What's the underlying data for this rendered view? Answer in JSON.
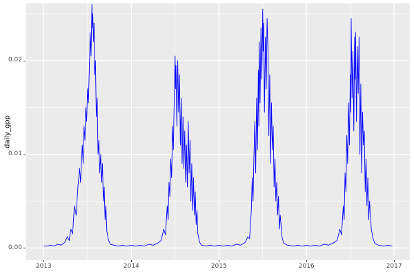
{
  "figure": {
    "bg": "#FFFFFF",
    "panel_bg": "#EBEBEB",
    "grid_major_color": "#FFFFFF",
    "grid_minor_color": "#FFFFFF",
    "tick_text_color": "#4D4D4D",
    "axis_title_color": "#000000"
  },
  "chart_data": {
    "type": "line",
    "title": "",
    "xlabel": "",
    "ylabel": "daily_gpp",
    "grid": true,
    "legend": false,
    "xlim": [
      2012.8,
      2017.18
    ],
    "ylim": [
      -0.0013,
      0.0261
    ],
    "x_major_ticks": [
      2013,
      2014,
      2015,
      2016,
      2017
    ],
    "x_tick_labels": [
      "2013",
      "2014",
      "2015",
      "2016",
      "2017"
    ],
    "x_minor_ticks": [
      2013.5,
      2014.5,
      2015.5,
      2016.5
    ],
    "y_major_ticks": [
      0.0,
      0.01,
      0.02
    ],
    "y_tick_labels": [
      "0.00",
      "0.01",
      "0.02"
    ],
    "y_minor_ticks": [
      0.005,
      0.015,
      0.025
    ],
    "series": [
      {
        "name": "daily_gpp",
        "color": "#0000FF",
        "points": [
          [
            2013.0,
            0.0002
          ],
          [
            2013.04,
            0.0002
          ],
          [
            2013.08,
            0.0003
          ],
          [
            2013.12,
            0.0002
          ],
          [
            2013.16,
            0.0004
          ],
          [
            2013.2,
            0.0003
          ],
          [
            2013.24,
            0.0006
          ],
          [
            2013.27,
            0.0012
          ],
          [
            2013.29,
            0.0008
          ],
          [
            2013.31,
            0.002
          ],
          [
            2013.33,
            0.0015
          ],
          [
            2013.35,
            0.0045
          ],
          [
            2013.37,
            0.0035
          ],
          [
            2013.39,
            0.0065
          ],
          [
            2013.41,
            0.0085
          ],
          [
            2013.42,
            0.007
          ],
          [
            2013.44,
            0.011
          ],
          [
            2013.45,
            0.009
          ],
          [
            2013.46,
            0.013
          ],
          [
            2013.47,
            0.0115
          ],
          [
            2013.48,
            0.015
          ],
          [
            2013.49,
            0.0135
          ],
          [
            2013.5,
            0.017
          ],
          [
            2013.51,
            0.0155
          ],
          [
            2013.52,
            0.019
          ],
          [
            2013.53,
            0.023
          ],
          [
            2013.54,
            0.0205
          ],
          [
            2013.55,
            0.026
          ],
          [
            2013.555,
            0.0235
          ],
          [
            2013.56,
            0.025
          ],
          [
            2013.57,
            0.022
          ],
          [
            2013.575,
            0.024
          ],
          [
            2013.58,
            0.0185
          ],
          [
            2013.59,
            0.02
          ],
          [
            2013.6,
            0.014
          ],
          [
            2013.61,
            0.016
          ],
          [
            2013.62,
            0.01
          ],
          [
            2013.63,
            0.0115
          ],
          [
            2013.64,
            0.008
          ],
          [
            2013.65,
            0.01
          ],
          [
            2013.66,
            0.007
          ],
          [
            2013.67,
            0.009
          ],
          [
            2013.68,
            0.005
          ],
          [
            2013.69,
            0.0065
          ],
          [
            2013.7,
            0.003
          ],
          [
            2013.71,
            0.0045
          ],
          [
            2013.72,
            0.0018
          ],
          [
            2013.74,
            0.0008
          ],
          [
            2013.76,
            0.0004
          ],
          [
            2013.8,
            0.0003
          ],
          [
            2013.85,
            0.0002
          ],
          [
            2013.9,
            0.0003
          ],
          [
            2013.95,
            0.0002
          ],
          [
            2014.0,
            0.0003
          ],
          [
            2014.05,
            0.0002
          ],
          [
            2014.1,
            0.0003
          ],
          [
            2014.15,
            0.0002
          ],
          [
            2014.2,
            0.0004
          ],
          [
            2014.25,
            0.0003
          ],
          [
            2014.3,
            0.0005
          ],
          [
            2014.34,
            0.0008
          ],
          [
            2014.37,
            0.002
          ],
          [
            2014.39,
            0.0014
          ],
          [
            2014.41,
            0.0045
          ],
          [
            2014.42,
            0.003
          ],
          [
            2014.43,
            0.007
          ],
          [
            2014.44,
            0.0055
          ],
          [
            2014.45,
            0.0095
          ],
          [
            2014.46,
            0.0075
          ],
          [
            2014.47,
            0.013
          ],
          [
            2014.48,
            0.0105
          ],
          [
            2014.49,
            0.016
          ],
          [
            2014.5,
            0.0205
          ],
          [
            2014.505,
            0.017
          ],
          [
            2014.51,
            0.0195
          ],
          [
            2014.52,
            0.013
          ],
          [
            2014.53,
            0.02
          ],
          [
            2014.54,
            0.0145
          ],
          [
            2014.55,
            0.0185
          ],
          [
            2014.56,
            0.011
          ],
          [
            2014.57,
            0.016
          ],
          [
            2014.58,
            0.009
          ],
          [
            2014.59,
            0.014
          ],
          [
            2014.6,
            0.0085
          ],
          [
            2014.61,
            0.0125
          ],
          [
            2014.62,
            0.007
          ],
          [
            2014.63,
            0.011
          ],
          [
            2014.64,
            0.0065
          ],
          [
            2014.65,
            0.0135
          ],
          [
            2014.66,
            0.008
          ],
          [
            2014.67,
            0.0115
          ],
          [
            2014.68,
            0.005
          ],
          [
            2014.69,
            0.009
          ],
          [
            2014.7,
            0.004
          ],
          [
            2014.71,
            0.0075
          ],
          [
            2014.72,
            0.0035
          ],
          [
            2014.73,
            0.006
          ],
          [
            2014.74,
            0.0025
          ],
          [
            2014.75,
            0.004
          ],
          [
            2014.76,
            0.0015
          ],
          [
            2014.78,
            0.0006
          ],
          [
            2014.8,
            0.0003
          ],
          [
            2014.85,
            0.0002
          ],
          [
            2014.9,
            0.0003
          ],
          [
            2014.95,
            0.0002
          ],
          [
            2015.0,
            0.0003
          ],
          [
            2015.05,
            0.0002
          ],
          [
            2015.1,
            0.0003
          ],
          [
            2015.15,
            0.0002
          ],
          [
            2015.2,
            0.0004
          ],
          [
            2015.25,
            0.0003
          ],
          [
            2015.3,
            0.0006
          ],
          [
            2015.33,
            0.0012
          ],
          [
            2015.35,
            0.001
          ],
          [
            2015.37,
            0.004
          ],
          [
            2015.38,
            0.0075
          ],
          [
            2015.39,
            0.005
          ],
          [
            2015.4,
            0.01
          ],
          [
            2015.41,
            0.0135
          ],
          [
            2015.42,
            0.008
          ],
          [
            2015.43,
            0.016
          ],
          [
            2015.44,
            0.0105
          ],
          [
            2015.45,
            0.019
          ],
          [
            2015.455,
            0.013
          ],
          [
            2015.46,
            0.022
          ],
          [
            2015.47,
            0.0155
          ],
          [
            2015.48,
            0.0235
          ],
          [
            2015.49,
            0.018
          ],
          [
            2015.5,
            0.0255
          ],
          [
            2015.505,
            0.021
          ],
          [
            2015.51,
            0.024
          ],
          [
            2015.52,
            0.0145
          ],
          [
            2015.53,
            0.0225
          ],
          [
            2015.54,
            0.017
          ],
          [
            2015.55,
            0.0245
          ],
          [
            2015.56,
            0.021
          ],
          [
            2015.57,
            0.012
          ],
          [
            2015.58,
            0.0185
          ],
          [
            2015.59,
            0.009
          ],
          [
            2015.6,
            0.0155
          ],
          [
            2015.61,
            0.0105
          ],
          [
            2015.62,
            0.013
          ],
          [
            2015.63,
            0.0065
          ],
          [
            2015.64,
            0.0095
          ],
          [
            2015.65,
            0.005
          ],
          [
            2015.66,
            0.007
          ],
          [
            2015.67,
            0.0035
          ],
          [
            2015.68,
            0.0055
          ],
          [
            2015.69,
            0.002
          ],
          [
            2015.7,
            0.0035
          ],
          [
            2015.72,
            0.0012
          ],
          [
            2015.74,
            0.0005
          ],
          [
            2015.78,
            0.0003
          ],
          [
            2015.85,
            0.0002
          ],
          [
            2015.9,
            0.0003
          ],
          [
            2015.95,
            0.0002
          ],
          [
            2016.0,
            0.0003
          ],
          [
            2016.05,
            0.0002
          ],
          [
            2016.1,
            0.0003
          ],
          [
            2016.15,
            0.0002
          ],
          [
            2016.2,
            0.0004
          ],
          [
            2016.25,
            0.0003
          ],
          [
            2016.3,
            0.0005
          ],
          [
            2016.35,
            0.0008
          ],
          [
            2016.38,
            0.002
          ],
          [
            2016.4,
            0.0014
          ],
          [
            2016.42,
            0.0045
          ],
          [
            2016.43,
            0.003
          ],
          [
            2016.44,
            0.008
          ],
          [
            2016.45,
            0.006
          ],
          [
            2016.46,
            0.012
          ],
          [
            2016.47,
            0.009
          ],
          [
            2016.48,
            0.0155
          ],
          [
            2016.49,
            0.011
          ],
          [
            2016.5,
            0.0185
          ],
          [
            2016.505,
            0.0145
          ],
          [
            2016.51,
            0.0245
          ],
          [
            2016.52,
            0.016
          ],
          [
            2016.53,
            0.021
          ],
          [
            2016.54,
            0.0125
          ],
          [
            2016.55,
            0.0225
          ],
          [
            2016.555,
            0.018
          ],
          [
            2016.56,
            0.023
          ],
          [
            2016.57,
            0.0135
          ],
          [
            2016.58,
            0.0215
          ],
          [
            2016.59,
            0.0165
          ],
          [
            2016.6,
            0.0225
          ],
          [
            2016.61,
            0.01
          ],
          [
            2016.62,
            0.0175
          ],
          [
            2016.63,
            0.008
          ],
          [
            2016.64,
            0.0145
          ],
          [
            2016.65,
            0.011
          ],
          [
            2016.66,
            0.0125
          ],
          [
            2016.67,
            0.006
          ],
          [
            2016.68,
            0.0095
          ],
          [
            2016.69,
            0.0045
          ],
          [
            2016.7,
            0.0075
          ],
          [
            2016.71,
            0.003
          ],
          [
            2016.72,
            0.005
          ],
          [
            2016.74,
            0.002
          ],
          [
            2016.76,
            0.001
          ],
          [
            2016.78,
            0.0005
          ],
          [
            2016.82,
            0.0003
          ],
          [
            2016.88,
            0.0002
          ],
          [
            2016.93,
            0.0003
          ],
          [
            2016.98,
            0.0002
          ]
        ]
      }
    ]
  }
}
